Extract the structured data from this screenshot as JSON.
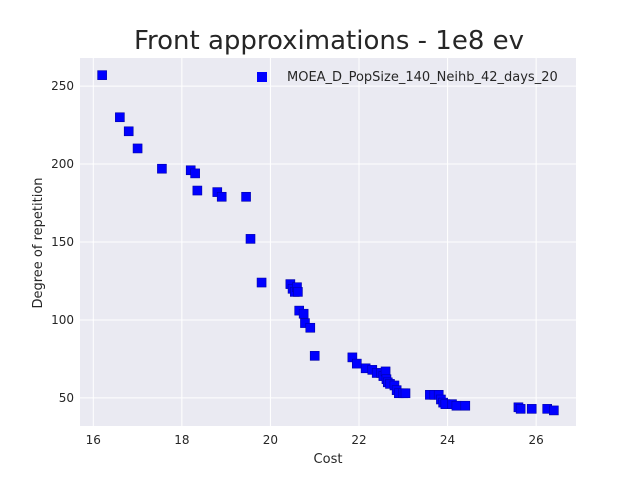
{
  "chart_data": {
    "type": "scatter",
    "title": "Front approximations - 1e8 ev",
    "xlabel": "Cost",
    "ylabel": "Degree of repetition",
    "xlim": [
      15.7,
      26.9
    ],
    "ylim": [
      32,
      268
    ],
    "xticks": [
      16,
      18,
      20,
      22,
      24,
      26
    ],
    "yticks": [
      50,
      100,
      150,
      200,
      250
    ],
    "grid": true,
    "legend_position": "top-right",
    "colors": {
      "background": "#EAEAF2",
      "grid": "#FFFFFF",
      "marker": "#0000FF"
    },
    "series": [
      {
        "name": "MOEA_D_PopSize_140_Neihb_42_days_20",
        "marker": "square",
        "points": [
          [
            16.2,
            257
          ],
          [
            16.6,
            230
          ],
          [
            16.8,
            221
          ],
          [
            17.0,
            210
          ],
          [
            17.55,
            197
          ],
          [
            18.2,
            196
          ],
          [
            18.3,
            194
          ],
          [
            18.35,
            183
          ],
          [
            18.8,
            182
          ],
          [
            18.9,
            179
          ],
          [
            19.45,
            179
          ],
          [
            19.55,
            152
          ],
          [
            19.8,
            124
          ],
          [
            20.45,
            123
          ],
          [
            20.5,
            120
          ],
          [
            20.55,
            118
          ],
          [
            20.6,
            121
          ],
          [
            20.62,
            118
          ],
          [
            20.65,
            106
          ],
          [
            20.75,
            104
          ],
          [
            20.78,
            98
          ],
          [
            20.9,
            95
          ],
          [
            21.0,
            77
          ],
          [
            21.85,
            76
          ],
          [
            21.95,
            72
          ],
          [
            22.15,
            69
          ],
          [
            22.3,
            68
          ],
          [
            22.4,
            66
          ],
          [
            22.5,
            66
          ],
          [
            22.55,
            64
          ],
          [
            22.6,
            67
          ],
          [
            22.62,
            62
          ],
          [
            22.65,
            60
          ],
          [
            22.7,
            59
          ],
          [
            22.8,
            58
          ],
          [
            22.85,
            55
          ],
          [
            22.9,
            53
          ],
          [
            23.0,
            53
          ],
          [
            23.05,
            53
          ],
          [
            23.6,
            52
          ],
          [
            23.7,
            52
          ],
          [
            23.8,
            52
          ],
          [
            23.85,
            49
          ],
          [
            23.9,
            47
          ],
          [
            23.95,
            46
          ],
          [
            24.1,
            46
          ],
          [
            24.2,
            45
          ],
          [
            24.4,
            45
          ],
          [
            25.6,
            44
          ],
          [
            25.65,
            43
          ],
          [
            25.9,
            43
          ],
          [
            26.25,
            43
          ],
          [
            26.4,
            42
          ]
        ]
      }
    ]
  }
}
